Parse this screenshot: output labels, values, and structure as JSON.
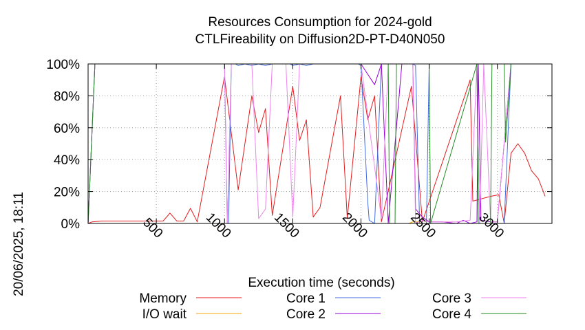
{
  "chart_data": {
    "type": "line",
    "title": "Resources Consumption for 2024-gold",
    "subtitle": "CTLFireability on Diffusion2D-PT-D40N050",
    "xlabel": "Execution time (seconds)",
    "ylabel": "",
    "side_label": "20/06/2025, 18:11",
    "xlim": [
      0,
      3400
    ],
    "ylim": [
      0,
      100
    ],
    "x_ticks": [
      500,
      1000,
      1500,
      2000,
      2500,
      3000
    ],
    "x_tick_labels": [
      "500",
      "1000",
      "1500",
      "2000",
      "2500",
      "3000"
    ],
    "y_ticks": [
      0,
      20,
      40,
      60,
      80,
      100
    ],
    "y_tick_labels": [
      "0%",
      "20%",
      "40%",
      "60%",
      "80%",
      "100%"
    ],
    "grid": true,
    "legend_position": "bottom",
    "series": [
      {
        "name": "Memory",
        "color": "#e41a1c",
        "x": [
          0,
          30,
          100,
          200,
          300,
          400,
          500,
          550,
          600,
          650,
          700,
          750,
          800,
          1000,
          1100,
          1200,
          1250,
          1300,
          1350,
          1500,
          1550,
          1600,
          1650,
          1700,
          1850,
          1900,
          2000,
          2050,
          2100,
          2150,
          2370,
          2450,
          2800,
          2820,
          2950,
          3010,
          3050,
          3100,
          3150,
          3200,
          3250,
          3300,
          3350
        ],
        "values": [
          0,
          1,
          1.5,
          1.5,
          1.5,
          1.5,
          1.5,
          1.5,
          6.5,
          1.5,
          1.5,
          9.5,
          1,
          92,
          21,
          80,
          57,
          72,
          5,
          86,
          52,
          65,
          4,
          10,
          80,
          3,
          92,
          65,
          80,
          1,
          86,
          1,
          90,
          14,
          17,
          18,
          0,
          44,
          50,
          44,
          33,
          28,
          17
        ]
      },
      {
        "name": "I/O wait",
        "color": "#f0a500",
        "x": [
          0,
          2350,
          2380,
          2420,
          2440,
          3350
        ],
        "values": [
          0,
          0,
          1,
          1,
          0,
          0
        ]
      },
      {
        "name": "Core 1",
        "color": "#4169e1",
        "x": [
          0,
          50,
          1000,
          1020,
          1030,
          1050,
          1080,
          1100,
          1150,
          1200,
          1250,
          1300,
          1350,
          1480,
          1500,
          1550,
          1600,
          1650,
          1980,
          2000,
          2050,
          2060,
          2100,
          2150,
          2200,
          2380,
          2400,
          2430,
          2480,
          2500,
          2850,
          2870,
          3050,
          3100,
          3350
        ],
        "values": [
          0,
          100,
          100,
          0,
          0,
          100,
          100,
          99,
          100,
          99,
          100,
          99,
          100,
          100,
          99,
          100,
          99,
          100,
          100,
          99,
          13,
          2,
          0,
          100,
          100,
          100,
          99,
          0,
          0,
          100,
          100,
          0,
          0,
          100,
          100
        ]
      },
      {
        "name": "Core 2",
        "color": "#9400d3",
        "x": [
          0,
          50,
          2000,
          2100,
          2150,
          2200,
          2300,
          2380,
          2400,
          2450,
          2500,
          2600,
          2700,
          2750,
          2800,
          2850,
          2860,
          2880,
          2950,
          3000,
          3100,
          3350
        ],
        "values": [
          0,
          100,
          100,
          87,
          100,
          0,
          100,
          100,
          9,
          4,
          1,
          1,
          0,
          2,
          0,
          1,
          100,
          2,
          1,
          1,
          100,
          100
        ]
      },
      {
        "name": "Core 3",
        "color": "#ee82ee",
        "x": [
          0,
          50,
          1000,
          1020,
          1050,
          1100,
          1200,
          1250,
          1300,
          1350,
          1450,
          1500,
          1550,
          1600,
          1650,
          1700,
          2000,
          2150,
          2200,
          2380,
          2400,
          2450,
          2500,
          2700,
          2800,
          2850,
          2870,
          2900,
          2950,
          3000,
          3100,
          3350
        ],
        "values": [
          0,
          100,
          100,
          0,
          100,
          100,
          100,
          3,
          9,
          100,
          100,
          4,
          100,
          100,
          100,
          100,
          100,
          3,
          100,
          100,
          0,
          2,
          1,
          1,
          2,
          100,
          1,
          100,
          1,
          1,
          100,
          100
        ]
      },
      {
        "name": "Core 4",
        "color": "#228b22",
        "x": [
          0,
          50,
          2200,
          2210,
          2250,
          2260,
          2500,
          2510,
          2850,
          2860,
          2950,
          2960,
          3050,
          3060,
          3100,
          3350
        ],
        "values": [
          0,
          100,
          100,
          0,
          0,
          100,
          100,
          0,
          100,
          0,
          0,
          100,
          100,
          51,
          100,
          100
        ]
      }
    ]
  }
}
